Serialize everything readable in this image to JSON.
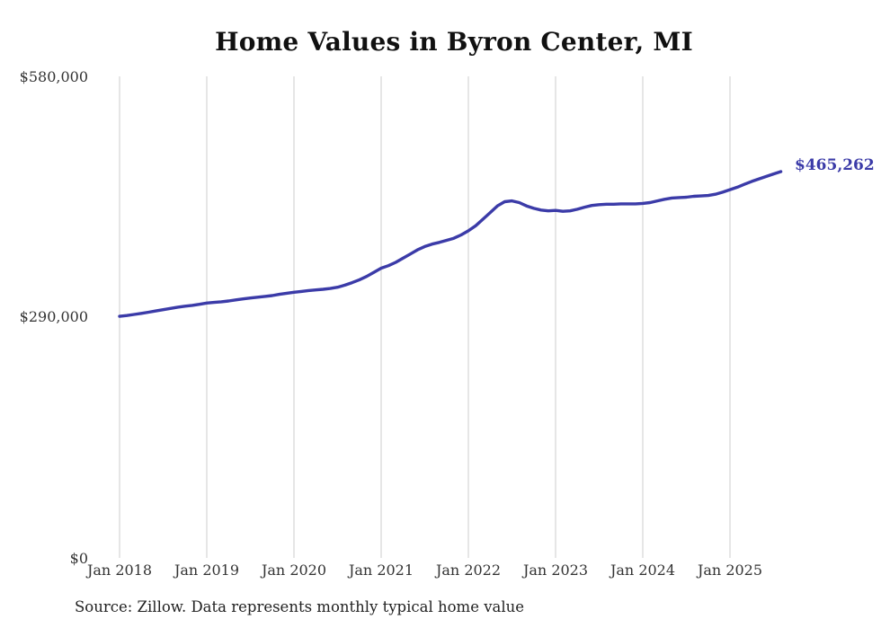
{
  "page": {
    "background": "#ffffff"
  },
  "chart_data": {
    "type": "line",
    "title": "Home Values in Byron Center, MI",
    "xlabel": "",
    "ylabel": "",
    "ylim": [
      0,
      580000
    ],
    "y_tick_values": [
      580000,
      290000,
      0
    ],
    "y_tick_labels": [
      "$580,000",
      "$290,000",
      "$0"
    ],
    "x_tick_labels": [
      "Jan 2018",
      "Jan 2019",
      "Jan 2020",
      "Jan 2021",
      "Jan 2022",
      "Jan 2023",
      "Jan 2024",
      "Jan 2025"
    ],
    "x_range": [
      "Jan 2018",
      "Aug 2025"
    ],
    "points_per_year": 12,
    "grid": "vertical-only",
    "legend_position": "none",
    "end_label": "$465,262",
    "end_value": 465262,
    "colors": {
      "line": "#3b3ba8",
      "end_label": "#3b3ba8",
      "gridline": "#cccccc"
    },
    "series": [
      {
        "name": "Typical home value",
        "start_month": "2018-01",
        "values": [
          291000,
          292000,
          293200,
          294500,
          296000,
          297500,
          299000,
          300500,
          302000,
          303200,
          304200,
          305500,
          307000,
          307800,
          308500,
          309500,
          310800,
          312000,
          313000,
          314000,
          315000,
          316000,
          317500,
          318800,
          320000,
          321000,
          322000,
          322800,
          323500,
          324500,
          326000,
          328500,
          331500,
          335000,
          339000,
          344000,
          349000,
          352000,
          356000,
          361000,
          366000,
          371000,
          375000,
          378000,
          380000,
          382500,
          385000,
          389000,
          394000,
          400000,
          408000,
          416000,
          424000,
          429000,
          430000,
          428000,
          424000,
          421000,
          419000,
          418000,
          418500,
          417500,
          418000,
          420000,
          422500,
          424500,
          425500,
          426000,
          426000,
          426500,
          426500,
          426500,
          427000,
          428000,
          430000,
          432000,
          433500,
          434000,
          434500,
          435500,
          436000,
          436500,
          438000,
          440500,
          443500,
          446500,
          450000,
          453500,
          456500,
          459500,
          462500,
          465262
        ]
      }
    ]
  },
  "footer": {
    "source_text": "Source: Zillow. Data represents monthly typical home value"
  }
}
